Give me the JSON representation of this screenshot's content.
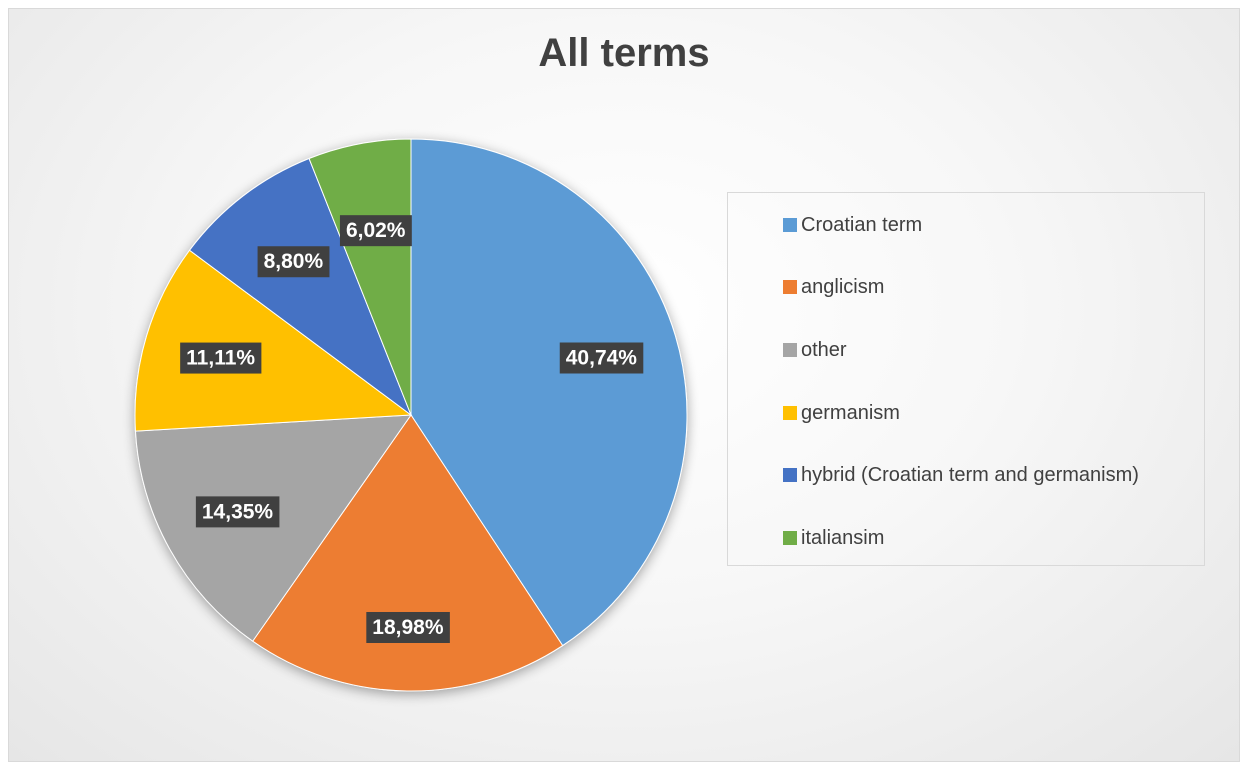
{
  "chart_data": {
    "type": "pie",
    "title": "All terms",
    "categories": [
      "Croatian term",
      "anglicism",
      "other",
      "germanism",
      "hybrid (Croatian term and germanism)",
      "italiansim"
    ],
    "values": [
      40.74,
      18.98,
      14.35,
      11.11,
      8.8,
      6.02
    ],
    "labels": [
      "40,74%",
      "18,98%",
      "14,35%",
      "11,11%",
      "8,80%",
      "6,02%"
    ],
    "colors": [
      "#5B9BD5",
      "#ED7D31",
      "#A5A5A5",
      "#FFC000",
      "#4472C4",
      "#70AD47"
    ],
    "legend_position": "right"
  }
}
